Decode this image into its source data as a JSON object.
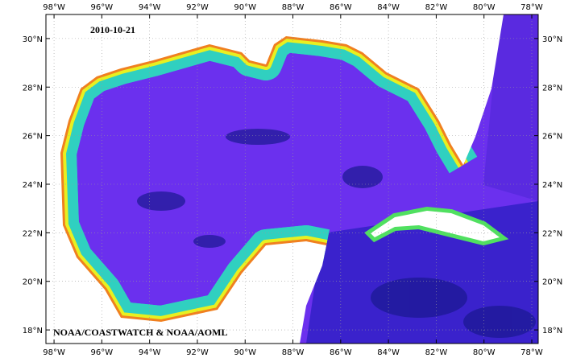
{
  "map": {
    "date": "2010-10-21",
    "credit": "NOAA/COASTWATCH & NOAA/AOML",
    "lon_range": [
      -98.34,
      -77.73
    ],
    "lat_range": [
      17.44,
      30.99
    ],
    "lon_ticks": [
      {
        "value": -98,
        "label": "98°W"
      },
      {
        "value": -96,
        "label": "96°W"
      },
      {
        "value": -94,
        "label": "94°W"
      },
      {
        "value": -92,
        "label": "92°W"
      },
      {
        "value": -90,
        "label": "90°W"
      },
      {
        "value": -88,
        "label": "88°W"
      },
      {
        "value": -86,
        "label": "86°W"
      },
      {
        "value": -84,
        "label": "84°W"
      },
      {
        "value": -82,
        "label": "82°W"
      },
      {
        "value": -80,
        "label": "80°W"
      },
      {
        "value": -78,
        "label": "78°W"
      }
    ],
    "lat_ticks": [
      {
        "value": 18,
        "label": "18°N"
      },
      {
        "value": 20,
        "label": "20°N"
      },
      {
        "value": 22,
        "label": "22°N"
      },
      {
        "value": 24,
        "label": "24°N"
      },
      {
        "value": 26,
        "label": "26°N"
      },
      {
        "value": 28,
        "label": "28°N"
      },
      {
        "value": 30,
        "label": "30°N"
      }
    ]
  }
}
